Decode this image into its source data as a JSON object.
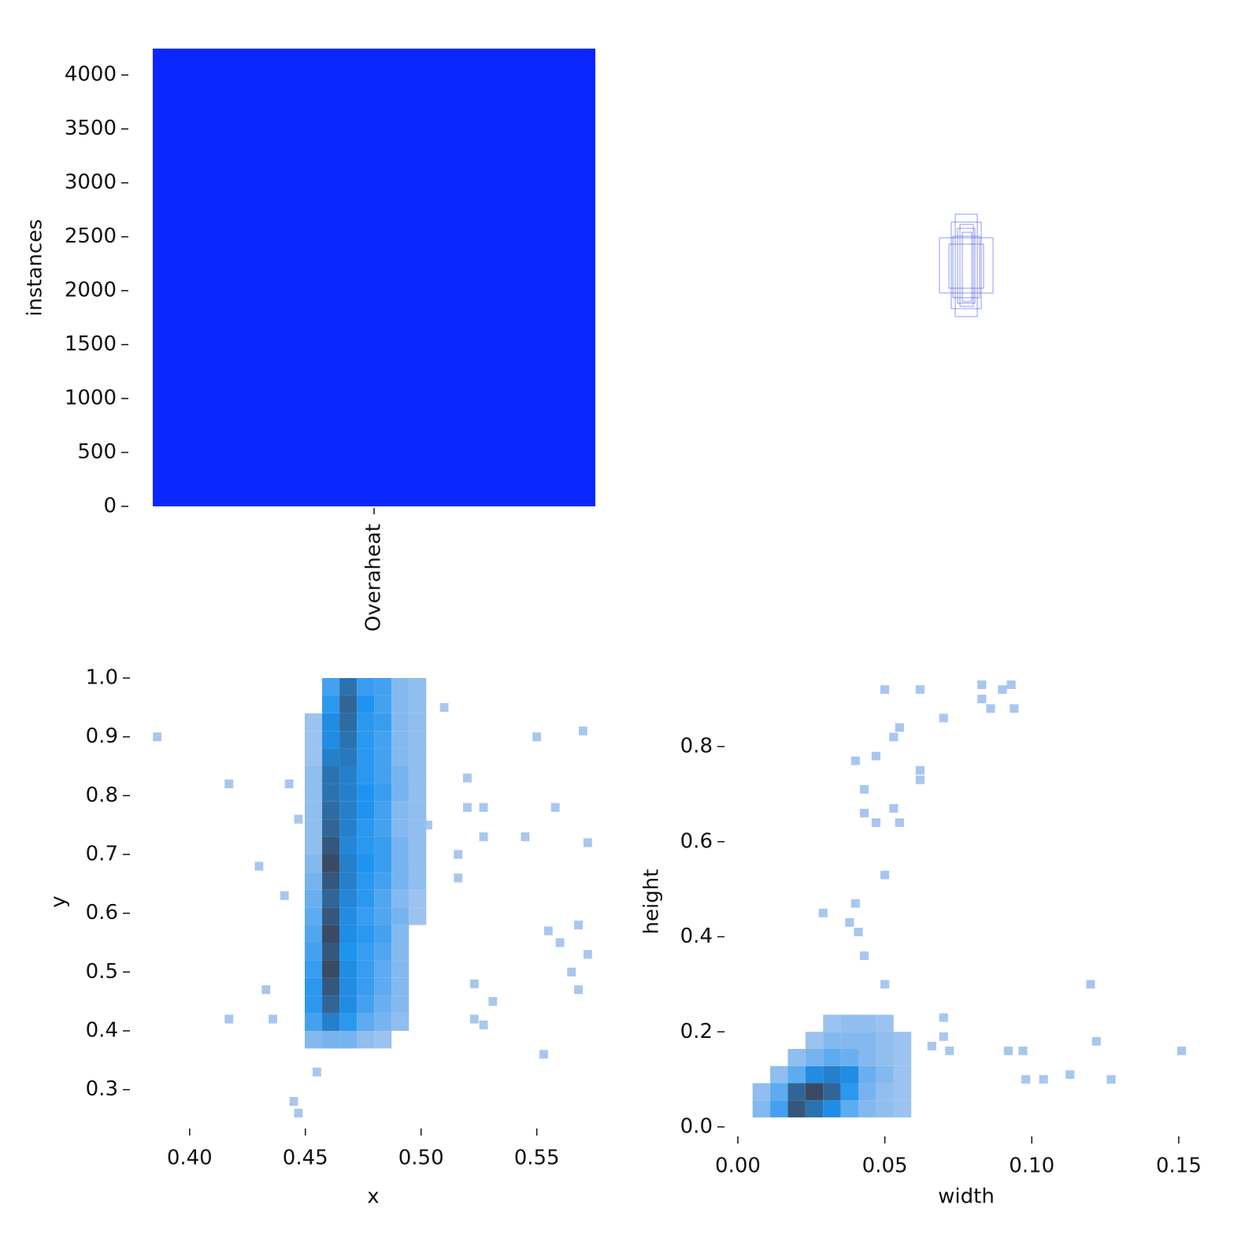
{
  "chart_data": [
    {
      "type": "bar",
      "ylabel": "instances",
      "categories": [
        "Overaheat"
      ],
      "values": [
        4245
      ],
      "color": "#0a26ff",
      "ylim": [
        0,
        4250
      ],
      "yticks": [
        0,
        500,
        1000,
        1500,
        2000,
        2500,
        3000,
        3500,
        4000
      ]
    },
    {
      "type": "heatmap",
      "xlabel": "x",
      "ylabel": "y",
      "xlim": [
        0.38,
        0.577
      ],
      "ylim": [
        0.25,
        1.0
      ],
      "xticks": [
        {
          "value": 0.4,
          "label": "0.40"
        },
        0.45,
        {
          "value": 0.5,
          "label": "0.50"
        },
        0.55
      ],
      "yticks": [
        0.3,
        0.4,
        0.5,
        0.6,
        0.7,
        0.8,
        0.9,
        {
          "value": 1.0,
          "label": "1.0"
        }
      ],
      "grid_cells": {
        "bin_size": [
          0.0075,
          0.03
        ],
        "x": [
          0.4535,
          0.461,
          0.4685,
          0.476,
          0.4835,
          0.491,
          0.4985
        ],
        "y": [
          0.385,
          0.415,
          0.445,
          0.475,
          0.505,
          0.535,
          0.565,
          0.595,
          0.625,
          0.655,
          0.685,
          0.715,
          0.745,
          0.775,
          0.805,
          0.835,
          0.865,
          0.895,
          0.925,
          0.955,
          0.985
        ],
        "counts": [
          [
            3,
            4,
            4,
            2,
            1,
            null,
            null
          ],
          [
            8,
            14,
            10,
            6,
            4,
            2,
            null
          ],
          [
            10,
            18,
            12,
            8,
            5,
            3,
            null
          ],
          [
            10,
            20,
            12,
            9,
            6,
            3,
            null
          ],
          [
            9,
            22,
            12,
            9,
            6,
            3,
            null
          ],
          [
            8,
            20,
            11,
            9,
            7,
            3,
            null
          ],
          [
            7,
            22,
            12,
            10,
            8,
            3,
            null
          ],
          [
            6,
            20,
            12,
            9,
            7,
            4,
            1
          ],
          [
            5,
            18,
            13,
            10,
            7,
            3,
            1
          ],
          [
            4,
            20,
            14,
            10,
            8,
            4,
            2
          ],
          [
            3,
            22,
            14,
            11,
            9,
            4,
            2
          ],
          [
            2,
            20,
            13,
            10,
            9,
            4,
            2
          ],
          [
            2,
            18,
            14,
            10,
            8,
            3,
            2
          ],
          [
            2,
            17,
            14,
            11,
            8,
            3,
            2
          ],
          [
            2,
            16,
            14,
            11,
            9,
            4,
            2
          ],
          [
            2,
            16,
            14,
            10,
            8,
            4,
            2
          ],
          [
            1,
            14,
            15,
            10,
            8,
            3,
            2
          ],
          [
            1,
            12,
            16,
            10,
            8,
            3,
            2
          ],
          [
            1,
            12,
            17,
            10,
            9,
            3,
            2
          ],
          [
            null,
            10,
            18,
            11,
            8,
            3,
            2
          ],
          [
            null,
            8,
            16,
            9,
            8,
            3,
            2
          ]
        ]
      },
      "sparse_cells": {
        "bin_size": [
          0.0037,
          0.015
        ],
        "x": [
          0.386,
          0.417,
          0.417,
          0.43,
          0.433,
          0.436,
          0.441,
          0.443,
          0.445,
          0.447,
          0.447,
          0.455,
          0.503,
          0.516,
          0.516,
          0.52,
          0.52,
          0.523,
          0.523,
          0.527,
          0.527,
          0.527,
          0.531,
          0.545,
          0.55,
          0.553,
          0.558,
          0.555,
          0.56,
          0.565,
          0.568,
          0.568,
          0.57,
          0.572,
          0.572,
          0.51
        ],
        "y": [
          0.9,
          0.82,
          0.42,
          0.68,
          0.47,
          0.42,
          0.63,
          0.82,
          0.28,
          0.26,
          0.76,
          0.33,
          0.75,
          0.7,
          0.66,
          0.83,
          0.78,
          0.48,
          0.42,
          0.78,
          0.73,
          0.41,
          0.45,
          0.73,
          0.9,
          0.36,
          0.78,
          0.57,
          0.55,
          0.5,
          0.58,
          0.47,
          0.91,
          0.72,
          0.53,
          0.95
        ]
      }
    },
    {
      "type": "heatmap",
      "xlabel": "width",
      "ylabel": "height",
      "xlim": [
        0,
        0.153
      ],
      "ylim": [
        0,
        0.94
      ],
      "xticks": [
        {
          "value": 0,
          "label": "0.00"
        },
        0.05,
        {
          "value": 0.1,
          "label": "0.10"
        },
        0.15
      ],
      "yticks": [
        {
          "value": 0,
          "label": "0.0"
        },
        0.2,
        0.4,
        0.6,
        0.8
      ],
      "grid_cells": {
        "bin_size": [
          0.006,
          0.036
        ],
        "x": [
          0.008,
          0.014,
          0.02,
          0.026,
          0.032,
          0.038,
          0.044,
          0.05,
          0.056
        ],
        "y": [
          0.038,
          0.074,
          0.11,
          0.146,
          0.182,
          0.218
        ],
        "counts": [
          [
            3,
            8,
            20,
            16,
            12,
            6,
            3,
            2,
            1
          ],
          [
            2,
            6,
            18,
            22,
            18,
            10,
            4,
            2,
            1
          ],
          [
            null,
            2,
            6,
            12,
            14,
            12,
            5,
            3,
            1
          ],
          [
            null,
            null,
            2,
            4,
            6,
            5,
            3,
            2,
            1
          ],
          [
            null,
            null,
            null,
            1,
            3,
            3,
            3,
            2,
            1
          ],
          [
            null,
            null,
            null,
            null,
            1,
            2,
            2,
            1,
            null
          ]
        ]
      },
      "sparse_cells": {
        "bin_size": [
          0.003,
          0.018
        ],
        "x": [
          0.05,
          0.062,
          0.07,
          0.083,
          0.083,
          0.086,
          0.09,
          0.093,
          0.094,
          0.055,
          0.053,
          0.062,
          0.062,
          0.04,
          0.047,
          0.043,
          0.043,
          0.047,
          0.053,
          0.055,
          0.05,
          0.04,
          0.029,
          0.038,
          0.041,
          0.043,
          0.05,
          0.12,
          0.066,
          0.07,
          0.07,
          0.072,
          0.092,
          0.097,
          0.122,
          0.098,
          0.104,
          0.113,
          0.127,
          0.151
        ],
        "y": [
          0.92,
          0.92,
          0.86,
          0.93,
          0.9,
          0.88,
          0.92,
          0.93,
          0.88,
          0.84,
          0.82,
          0.75,
          0.73,
          0.77,
          0.78,
          0.71,
          0.66,
          0.64,
          0.67,
          0.64,
          0.53,
          0.47,
          0.45,
          0.43,
          0.41,
          0.36,
          0.3,
          0.3,
          0.17,
          0.23,
          0.19,
          0.16,
          0.16,
          0.16,
          0.18,
          0.1,
          0.1,
          0.11,
          0.1,
          0.16
        ]
      }
    }
  ]
}
